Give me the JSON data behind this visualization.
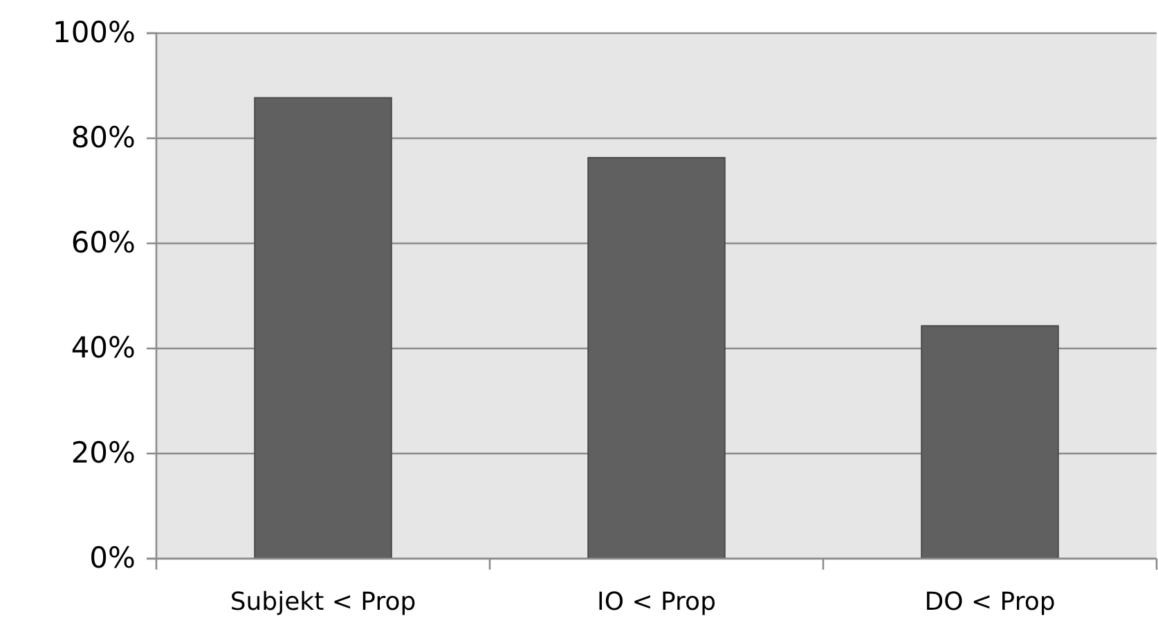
{
  "chart_data": {
    "type": "bar",
    "categories": [
      "Subjekt < Prop",
      "IO < Prop",
      "DO < Prop"
    ],
    "values": [
      87.7,
      76.3,
      44.3
    ],
    "color": "#606060",
    "ylim": [
      0,
      100
    ],
    "yticks": [
      {
        "value": 0,
        "label": "0%"
      },
      {
        "value": 20,
        "label": "20%"
      },
      {
        "value": 40,
        "label": "40%"
      },
      {
        "value": 60,
        "label": "60%"
      },
      {
        "value": 80,
        "label": "80%"
      },
      {
        "value": 100,
        "label": "100%"
      }
    ],
    "grid": "y"
  }
}
